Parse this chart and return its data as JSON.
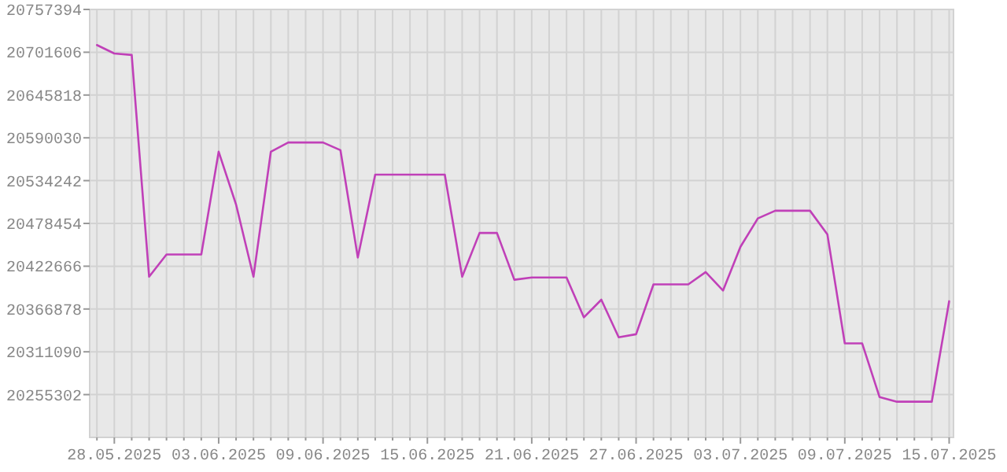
{
  "chart_data": {
    "type": "line",
    "x": [
      "2025-05-27",
      "2025-05-28",
      "2025-05-29",
      "2025-05-30",
      "2025-05-31",
      "2025-06-01",
      "2025-06-02",
      "2025-06-03",
      "2025-06-04",
      "2025-06-05",
      "2025-06-06",
      "2025-06-07",
      "2025-06-08",
      "2025-06-09",
      "2025-06-10",
      "2025-06-11",
      "2025-06-12",
      "2025-06-13",
      "2025-06-14",
      "2025-06-15",
      "2025-06-16",
      "2025-06-17",
      "2025-06-18",
      "2025-06-19",
      "2025-06-20",
      "2025-06-21",
      "2025-06-22",
      "2025-06-23",
      "2025-06-24",
      "2025-06-25",
      "2025-06-26",
      "2025-06-27",
      "2025-06-28",
      "2025-06-29",
      "2025-06-30",
      "2025-07-01",
      "2025-07-02",
      "2025-07-03",
      "2025-07-04",
      "2025-07-05",
      "2025-07-06",
      "2025-07-07",
      "2025-07-08",
      "2025-07-09",
      "2025-07-10",
      "2025-07-11",
      "2025-07-12",
      "2025-07-13",
      "2025-07-14",
      "2025-07-15"
    ],
    "series": [
      {
        "color": "#c040b8",
        "values": [
          20711000,
          20700000,
          20698000,
          20409000,
          20438000,
          20438000,
          20438000,
          20572000,
          20503000,
          20409000,
          20572000,
          20584000,
          20584000,
          20584000,
          20574000,
          20434000,
          20542000,
          20542000,
          20542000,
          20542000,
          20542000,
          20409000,
          20466000,
          20466000,
          20405000,
          20408000,
          20408000,
          20408000,
          20356000,
          20379000,
          20330000,
          20334000,
          20399000,
          20399000,
          20399000,
          20415000,
          20391000,
          20448000,
          20485000,
          20495000,
          20495000,
          20495000,
          20464000,
          20322000,
          20322000,
          20252000,
          20246000,
          20246000,
          20246000,
          20377000
        ]
      }
    ],
    "xlim": [
      "2025-05-26T14:00",
      "2025-07-15T06:00"
    ],
    "xticks": [
      {
        "value": "2025-05-27",
        "label": null
      },
      {
        "value": "2025-05-28",
        "label": "28.05.2025"
      },
      {
        "value": "2025-05-29",
        "label": null
      },
      {
        "value": "2025-05-30",
        "label": null
      },
      {
        "value": "2025-05-31",
        "label": null
      },
      {
        "value": "2025-06-01",
        "label": null
      },
      {
        "value": "2025-06-02",
        "label": null
      },
      {
        "value": "2025-06-03",
        "label": "03.06.2025"
      },
      {
        "value": "2025-06-04",
        "label": null
      },
      {
        "value": "2025-06-05",
        "label": null
      },
      {
        "value": "2025-06-06",
        "label": null
      },
      {
        "value": "2025-06-07",
        "label": null
      },
      {
        "value": "2025-06-08",
        "label": null
      },
      {
        "value": "2025-06-09",
        "label": "09.06.2025"
      },
      {
        "value": "2025-06-10",
        "label": null
      },
      {
        "value": "2025-06-11",
        "label": null
      },
      {
        "value": "2025-06-12",
        "label": null
      },
      {
        "value": "2025-06-13",
        "label": null
      },
      {
        "value": "2025-06-14",
        "label": null
      },
      {
        "value": "2025-06-15",
        "label": "15.06.2025"
      },
      {
        "value": "2025-06-16",
        "label": null
      },
      {
        "value": "2025-06-17",
        "label": null
      },
      {
        "value": "2025-06-18",
        "label": null
      },
      {
        "value": "2025-06-19",
        "label": null
      },
      {
        "value": "2025-06-20",
        "label": null
      },
      {
        "value": "2025-06-21",
        "label": "21.06.2025"
      },
      {
        "value": "2025-06-22",
        "label": null
      },
      {
        "value": "2025-06-23",
        "label": null
      },
      {
        "value": "2025-06-24",
        "label": null
      },
      {
        "value": "2025-06-25",
        "label": null
      },
      {
        "value": "2025-06-26",
        "label": null
      },
      {
        "value": "2025-06-27",
        "label": "27.06.2025"
      },
      {
        "value": "2025-06-28",
        "label": null
      },
      {
        "value": "2025-06-29",
        "label": null
      },
      {
        "value": "2025-06-30",
        "label": null
      },
      {
        "value": "2025-07-01",
        "label": null
      },
      {
        "value": "2025-07-02",
        "label": null
      },
      {
        "value": "2025-07-03",
        "label": "03.07.2025"
      },
      {
        "value": "2025-07-04",
        "label": null
      },
      {
        "value": "2025-07-05",
        "label": null
      },
      {
        "value": "2025-07-06",
        "label": null
      },
      {
        "value": "2025-07-07",
        "label": null
      },
      {
        "value": "2025-07-08",
        "label": null
      },
      {
        "value": "2025-07-09",
        "label": "09.07.2025"
      },
      {
        "value": "2025-07-10",
        "label": null
      },
      {
        "value": "2025-07-11",
        "label": null
      },
      {
        "value": "2025-07-12",
        "label": null
      },
      {
        "value": "2025-07-13",
        "label": null
      },
      {
        "value": "2025-07-14",
        "label": null
      },
      {
        "value": "2025-07-15",
        "label": "15.07.2025"
      }
    ],
    "ylim": [
      20199514,
      20757394
    ],
    "yticks": [
      20255302,
      20311090,
      20366878,
      20422666,
      20478454,
      20534242,
      20590030,
      20645818,
      20701606,
      20757394
    ],
    "grid": true,
    "marker": "none",
    "line_style": "solid"
  }
}
